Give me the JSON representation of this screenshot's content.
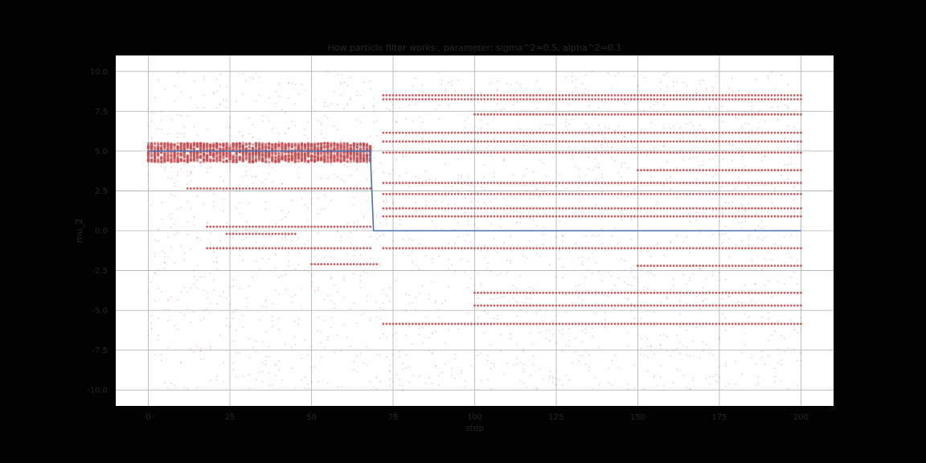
{
  "chart_data": {
    "type": "scatter",
    "title": "How particle filter works , parameter: sigma^2=0.5, alpha^2=0.1",
    "xlabel": "step",
    "ylabel": "mu_2",
    "xlim": [
      -10,
      210
    ],
    "ylim": [
      -11,
      11
    ],
    "xticks": [
      "0",
      "25",
      "50",
      "75",
      "100",
      "125",
      "150",
      "175",
      "200"
    ],
    "xtick_values": [
      0,
      25,
      50,
      75,
      100,
      125,
      150,
      175,
      200
    ],
    "yticks": [
      "10.0",
      "7.5",
      "5.0",
      "2.5",
      "0.0",
      "-2.5",
      "-5.0",
      "-7.5",
      "-10.0"
    ],
    "ytick_values": [
      10,
      7.5,
      5,
      2.5,
      0,
      -2.5,
      -5,
      -7.5,
      -10
    ],
    "grid": true,
    "background_color": "#000000",
    "plot_background": "#ffffff",
    "grid_color": "#b0b0b0",
    "text_color": "#262626",
    "particle_color": "#c44e52",
    "estimate_color": "#4c72b0",
    "series": [
      {
        "kind": "line",
        "x": [
          0,
          68,
          69,
          200
        ],
        "y": [
          5.0,
          5.0,
          0.0,
          0.0
        ]
      },
      {
        "kind": "particles",
        "dense_clusters": [
          {
            "x_range": [
              0,
              68
            ],
            "y_min": 4.3,
            "y_max": 5.5
          }
        ],
        "tracks": [
          {
            "x_range": [
              12,
              68
            ],
            "y": 2.65
          },
          {
            "x_range": [
              18,
              68
            ],
            "y": 0.25
          },
          {
            "x_range": [
              18,
              68
            ],
            "y": -1.1
          },
          {
            "x_range": [
              24,
              45
            ],
            "y": -0.2
          },
          {
            "x_range": [
              50,
              70
            ],
            "y": -2.1
          },
          {
            "x_range": [
              72,
              200
            ],
            "y": 8.5
          },
          {
            "x_range": [
              72,
              200
            ],
            "y": 8.25
          },
          {
            "x_range": [
              72,
              200
            ],
            "y": 6.15
          },
          {
            "x_range": [
              72,
              200
            ],
            "y": 5.6
          },
          {
            "x_range": [
              72,
              200
            ],
            "y": 4.9
          },
          {
            "x_range": [
              72,
              200
            ],
            "y": 3.0
          },
          {
            "x_range": [
              72,
              200
            ],
            "y": 2.3
          },
          {
            "x_range": [
              72,
              200
            ],
            "y": 1.4
          },
          {
            "x_range": [
              72,
              200
            ],
            "y": 0.9
          },
          {
            "x_range": [
              72,
              200
            ],
            "y": -1.1
          },
          {
            "x_range": [
              72,
              200
            ],
            "y": -5.85
          },
          {
            "x_range": [
              100,
              200
            ],
            "y": 7.3
          },
          {
            "x_range": [
              100,
              200
            ],
            "y": -3.9
          },
          {
            "x_range": [
              100,
              200
            ],
            "y": -4.7
          },
          {
            "x_range": [
              150,
              200
            ],
            "y": 3.8
          },
          {
            "x_range": [
              150,
              200
            ],
            "y": -2.2
          }
        ]
      }
    ]
  }
}
